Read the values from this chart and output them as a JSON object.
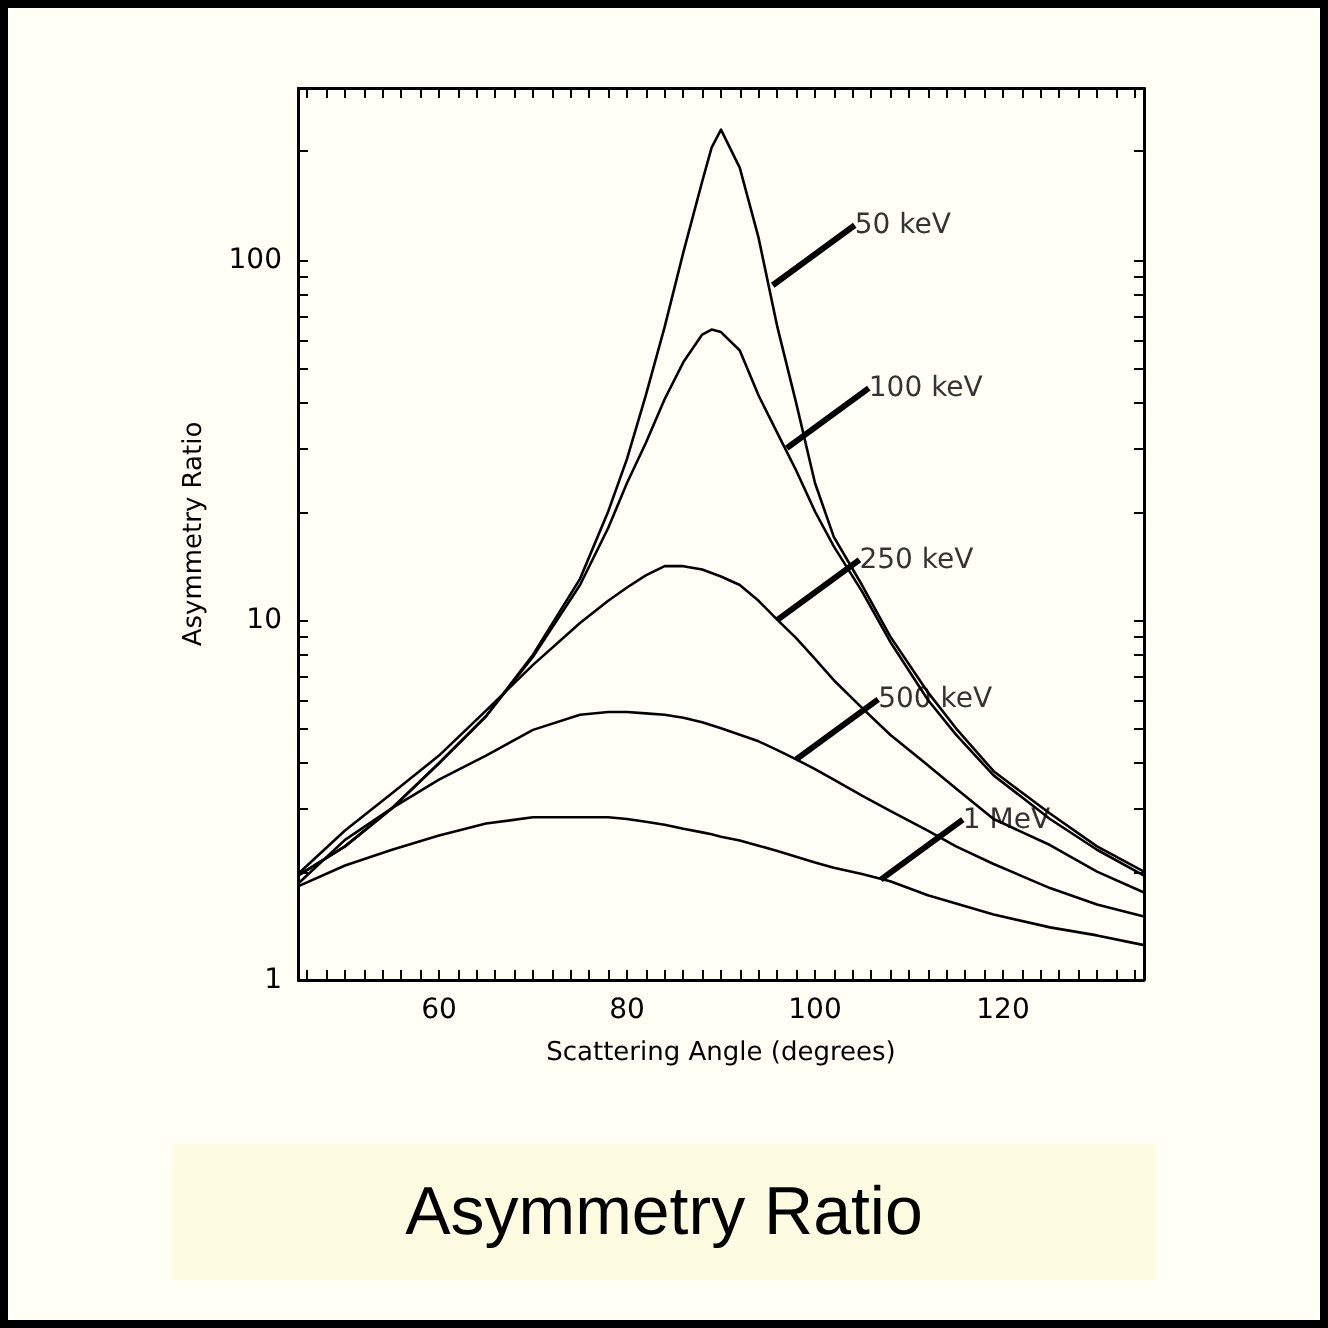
{
  "chart_data": {
    "type": "line",
    "title": "Asymmetry Ratio",
    "xlabel": "Scattering Angle (degrees)",
    "ylabel": "Asymmetry Ratio",
    "log": "y",
    "xlim": [
      45,
      135
    ],
    "ylim": [
      1,
      300
    ],
    "xticks": [
      {
        "value": 46,
        "label": null
      },
      {
        "value": 48,
        "label": null
      },
      {
        "value": 50,
        "label": null
      },
      {
        "value": 52,
        "label": null
      },
      {
        "value": 54,
        "label": null
      },
      {
        "value": 56,
        "label": null
      },
      {
        "value": 58,
        "label": null
      },
      60,
      {
        "value": 62,
        "label": null
      },
      {
        "value": 64,
        "label": null
      },
      {
        "value": 66,
        "label": null
      },
      {
        "value": 68,
        "label": null
      },
      {
        "value": 70,
        "label": null
      },
      {
        "value": 72,
        "label": null
      },
      {
        "value": 74,
        "label": null
      },
      {
        "value": 76,
        "label": null
      },
      {
        "value": 78,
        "label": null
      },
      80,
      {
        "value": 82,
        "label": null
      },
      {
        "value": 84,
        "label": null
      },
      {
        "value": 86,
        "label": null
      },
      {
        "value": 88,
        "label": null
      },
      {
        "value": 90,
        "label": null
      },
      {
        "value": 92,
        "label": null
      },
      {
        "value": 94,
        "label": null
      },
      {
        "value": 96,
        "label": null
      },
      {
        "value": 98,
        "label": null
      },
      100,
      {
        "value": 102,
        "label": null
      },
      {
        "value": 104,
        "label": null
      },
      {
        "value": 106,
        "label": null
      },
      {
        "value": 108,
        "label": null
      },
      {
        "value": 110,
        "label": null
      },
      {
        "value": 112,
        "label": null
      },
      {
        "value": 114,
        "label": null
      },
      {
        "value": 116,
        "label": null
      },
      {
        "value": 118,
        "label": null
      },
      120,
      {
        "value": 122,
        "label": null
      },
      {
        "value": 124,
        "label": null
      },
      {
        "value": 126,
        "label": null
      },
      {
        "value": 128,
        "label": null
      },
      {
        "value": 130,
        "label": null
      },
      {
        "value": 132,
        "label": null
      },
      {
        "value": 134,
        "label": null
      }
    ],
    "yticks": [
      1,
      {
        "value": 2,
        "label": null
      },
      {
        "value": 3,
        "label": null
      },
      {
        "value": 4,
        "label": null
      },
      {
        "value": 5,
        "label": null
      },
      {
        "value": 6,
        "label": null
      },
      {
        "value": 7,
        "label": null
      },
      {
        "value": 8,
        "label": null
      },
      {
        "value": 9,
        "label": null
      },
      10,
      {
        "value": 20,
        "label": null
      },
      {
        "value": 30,
        "label": null
      },
      {
        "value": 40,
        "label": null
      },
      {
        "value": 50,
        "label": null
      },
      {
        "value": 60,
        "label": null
      },
      {
        "value": 70,
        "label": null
      },
      {
        "value": 80,
        "label": null
      },
      {
        "value": 90,
        "label": null
      },
      100,
      {
        "value": 200,
        "label": null
      },
      {
        "value": 300,
        "label": null
      }
    ],
    "x": [
      45,
      50,
      55,
      60,
      65,
      70,
      75,
      78,
      80,
      82,
      84,
      86,
      88,
      89,
      90,
      92,
      94,
      96,
      98,
      100,
      102,
      105,
      108,
      112,
      115,
      119,
      125,
      130,
      135
    ],
    "series": [
      {
        "color": "#000000",
        "values": [
          1.95,
          2.35,
          3.0,
          4.0,
          5.4,
          8.0,
          13,
          20,
          28,
          42,
          65,
          105,
          165,
          205,
          230,
          180,
          115,
          65,
          40,
          24,
          17,
          12.5,
          9,
          6.3,
          5,
          3.8,
          2.9,
          2.35,
          2.0
        ]
      },
      {
        "color": "#000000",
        "values": [
          1.95,
          2.35,
          3.0,
          4.0,
          5.4,
          7.9,
          12.5,
          18,
          24,
          31,
          41,
          52,
          62,
          64,
          63,
          56,
          42,
          33,
          26,
          20,
          16,
          12,
          8.7,
          6.0,
          4.8,
          3.7,
          2.8,
          2.3,
          1.95
        ]
      },
      {
        "color": "#000000",
        "values": [
          1.97,
          2.6,
          3.3,
          4.2,
          5.6,
          7.5,
          9.8,
          11.3,
          12.3,
          13.3,
          14.1,
          14.1,
          13.8,
          13.5,
          13.2,
          12.5,
          11.3,
          10,
          8.9,
          7.8,
          6.8,
          5.7,
          4.8,
          3.95,
          3.4,
          2.8,
          2.37,
          2.0,
          1.75
        ]
      },
      {
        "color": "#000000",
        "values": [
          1.85,
          2.45,
          3.0,
          3.6,
          4.2,
          4.95,
          5.45,
          5.55,
          5.55,
          5.5,
          5.45,
          5.35,
          5.2,
          5.1,
          5.0,
          4.8,
          4.6,
          4.35,
          4.1,
          3.85,
          3.6,
          3.25,
          2.95,
          2.6,
          2.35,
          2.1,
          1.8,
          1.62,
          1.5
        ]
      },
      {
        "color": "#000000",
        "values": [
          1.82,
          2.08,
          2.3,
          2.52,
          2.72,
          2.83,
          2.83,
          2.83,
          2.8,
          2.75,
          2.7,
          2.63,
          2.57,
          2.54,
          2.5,
          2.44,
          2.36,
          2.28,
          2.2,
          2.12,
          2.05,
          1.97,
          1.88,
          1.72,
          1.63,
          1.52,
          1.4,
          1.33,
          1.25
        ]
      }
    ],
    "annotations": [
      {
        "text": "50 keV",
        "x": 95.5,
        "y": 85
      },
      {
        "text": "100 keV",
        "x": 97,
        "y": 30
      },
      {
        "text": "250 keV",
        "x": 96,
        "y": 10
      },
      {
        "text": "500 keV",
        "x": 98,
        "y": 4.1
      },
      {
        "text": "1 MeV",
        "x": 107,
        "y": 1.9
      }
    ]
  }
}
